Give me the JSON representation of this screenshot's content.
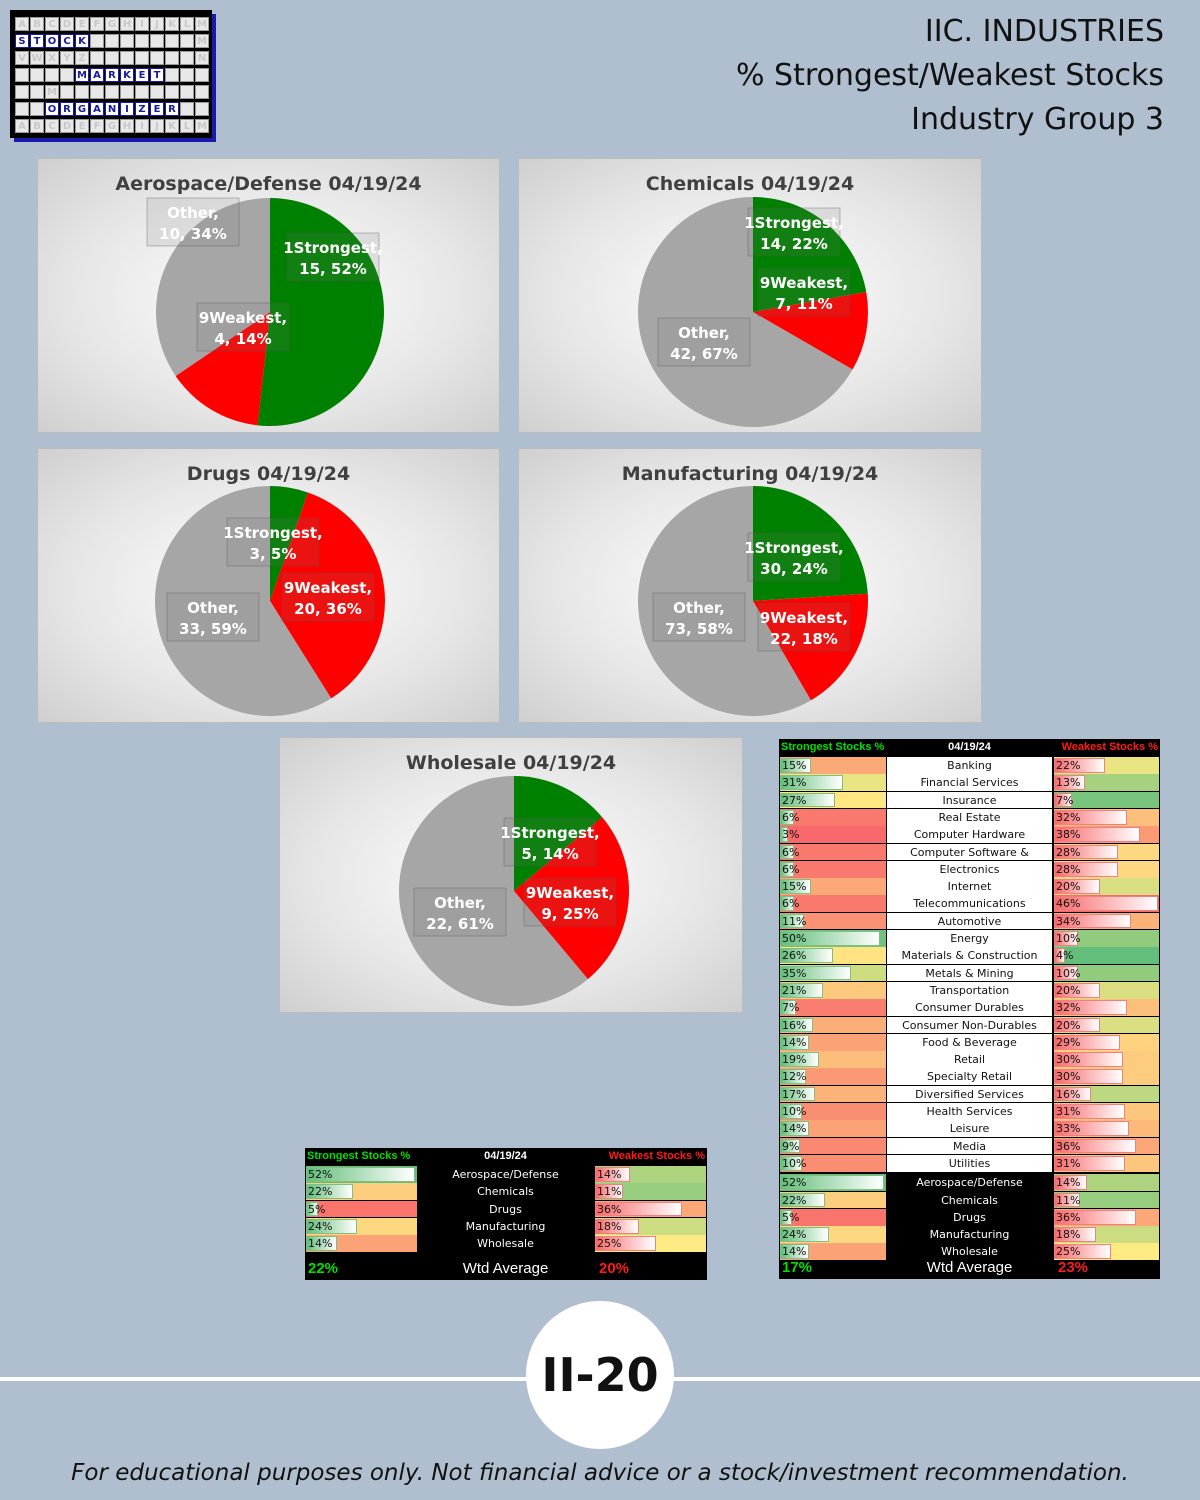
{
  "logo": {
    "rows": [
      [
        "A",
        "B",
        "C",
        "D",
        "E",
        "F",
        "G",
        "H",
        "I",
        "J",
        "K",
        "L",
        "M"
      ],
      [
        "S",
        "T",
        "O",
        "C",
        "K",
        "",
        "",
        "",
        "",
        "",
        "",
        "",
        "M"
      ],
      [
        "V",
        "W",
        "X",
        "Y",
        "Z",
        "",
        "",
        "",
        "",
        "",
        "",
        "",
        "N"
      ],
      [
        "",
        "",
        "",
        "",
        "M",
        "A",
        "R",
        "K",
        "E",
        "T",
        "",
        "",
        ""
      ],
      [
        "",
        "",
        "M",
        "",
        "",
        "",
        "",
        "",
        "",
        "",
        "",
        "",
        ""
      ],
      [
        "",
        "",
        "O",
        "R",
        "G",
        "A",
        "N",
        "I",
        "Z",
        "E",
        "R",
        "",
        ""
      ],
      [
        "A",
        "B",
        "C",
        "D",
        "E",
        "F",
        "G",
        "H",
        "I",
        "J",
        "K",
        "L",
        "M"
      ]
    ],
    "words": [
      "STOCK",
      "MARKET",
      "ORGANIZER"
    ]
  },
  "header": {
    "line1": "IIC. INDUSTRIES",
    "line2": "% Strongest/Weakest Stocks",
    "line3": "Industry Group 3"
  },
  "colors": {
    "strongest": "#008000",
    "weakest": "#ff0000",
    "other": "#a6a6a6",
    "strong_text": "#00e000",
    "weak_text": "#ff1a1a"
  },
  "chart_data": [
    {
      "type": "pie",
      "title": "Aerospace/Defense 04/19/24",
      "slices": [
        {
          "label": "1Strongest",
          "value": 15,
          "pct": "52%"
        },
        {
          "label": "9Weakest",
          "value": 4,
          "pct": "14%"
        },
        {
          "label": "Other",
          "value": 10,
          "pct": "34%"
        }
      ]
    },
    {
      "type": "pie",
      "title": "Chemicals 04/19/24",
      "slices": [
        {
          "label": "1Strongest",
          "value": 14,
          "pct": "22%"
        },
        {
          "label": "9Weakest",
          "value": 7,
          "pct": "11%"
        },
        {
          "label": "Other",
          "value": 42,
          "pct": "67%"
        }
      ]
    },
    {
      "type": "pie",
      "title": "Drugs 04/19/24",
      "slices": [
        {
          "label": "1Strongest",
          "value": 3,
          "pct": "5%"
        },
        {
          "label": "9Weakest",
          "value": 20,
          "pct": "36%"
        },
        {
          "label": "Other",
          "value": 33,
          "pct": "59%"
        }
      ]
    },
    {
      "type": "pie",
      "title": "Manufacturing 04/19/24",
      "slices": [
        {
          "label": "1Strongest",
          "value": 30,
          "pct": "24%"
        },
        {
          "label": "9Weakest",
          "value": 22,
          "pct": "18%"
        },
        {
          "label": "Other",
          "value": 73,
          "pct": "58%"
        }
      ]
    },
    {
      "type": "pie",
      "title": "Wholesale 04/19/24",
      "slices": [
        {
          "label": "1Strongest",
          "value": 5,
          "pct": "14%"
        },
        {
          "label": "9Weakest",
          "value": 9,
          "pct": "25%"
        },
        {
          "label": "Other",
          "value": 22,
          "pct": "61%"
        }
      ]
    },
    {
      "type": "table",
      "title": "04/19/24",
      "columns": [
        "Strongest Stocks %",
        "04/19/24",
        "Weakest Stocks %"
      ],
      "rows": [
        {
          "name": "Aerospace/Defense",
          "strong": 52,
          "weak": 14
        },
        {
          "name": "Chemicals",
          "strong": 22,
          "weak": 11
        },
        {
          "name": "Drugs",
          "strong": 5,
          "weak": 36
        },
        {
          "name": "Manufacturing",
          "strong": 24,
          "weak": 18
        },
        {
          "name": "Wholesale",
          "strong": 14,
          "weak": 25
        }
      ],
      "footer": {
        "strong": "22%",
        "label": "Wtd Average",
        "weak": "20%"
      }
    },
    {
      "type": "table",
      "title": "04/19/24",
      "columns": [
        "Strongest Stocks %",
        "04/19/24",
        "Weakest Stocks %"
      ],
      "rows": [
        {
          "name": "Banking",
          "strong": 15,
          "weak": 22
        },
        {
          "name": "Financial Services",
          "strong": 31,
          "weak": 13
        },
        {
          "name": "Insurance",
          "strong": 27,
          "weak": 7
        },
        {
          "name": "Real Estate",
          "strong": 6,
          "weak": 32
        },
        {
          "name": "Computer Hardware",
          "strong": 3,
          "weak": 38
        },
        {
          "name": "Computer Software & Services",
          "strong": 6,
          "weak": 28
        },
        {
          "name": "Electronics",
          "strong": 6,
          "weak": 28
        },
        {
          "name": "Internet",
          "strong": 15,
          "weak": 20
        },
        {
          "name": "Telecommunications",
          "strong": 6,
          "weak": 46
        },
        {
          "name": "Automotive",
          "strong": 11,
          "weak": 34
        },
        {
          "name": "Energy",
          "strong": 50,
          "weak": 10
        },
        {
          "name": "Materials & Construction",
          "strong": 26,
          "weak": 4
        },
        {
          "name": "Metals & Mining",
          "strong": 35,
          "weak": 10
        },
        {
          "name": "Transportation",
          "strong": 21,
          "weak": 20
        },
        {
          "name": "Consumer Durables",
          "strong": 7,
          "weak": 32
        },
        {
          "name": "Consumer Non-Durables",
          "strong": 16,
          "weak": 20
        },
        {
          "name": "Food & Beverage",
          "strong": 14,
          "weak": 29
        },
        {
          "name": "Retail",
          "strong": 19,
          "weak": 30
        },
        {
          "name": "Specialty Retail",
          "strong": 12,
          "weak": 30
        },
        {
          "name": "Diversified Services",
          "strong": 17,
          "weak": 16
        },
        {
          "name": "Health Services",
          "strong": 10,
          "weak": 31
        },
        {
          "name": "Leisure",
          "strong": 14,
          "weak": 33
        },
        {
          "name": "Media",
          "strong": 9,
          "weak": 36
        },
        {
          "name": "Utilities",
          "strong": 10,
          "weak": 31
        },
        {
          "name": "Aerospace/Defense",
          "strong": 52,
          "weak": 14
        },
        {
          "name": "Chemicals",
          "strong": 22,
          "weak": 11
        },
        {
          "name": "Drugs",
          "strong": 5,
          "weak": 36
        },
        {
          "name": "Manufacturing",
          "strong": 24,
          "weak": 18
        },
        {
          "name": "Wholesale",
          "strong": 14,
          "weak": 25
        }
      ],
      "footer": {
        "strong": "17%",
        "label": "Wtd Average",
        "weak": "23%"
      }
    }
  ],
  "page_number": "II-20",
  "disclaimer": "For educational purposes only. Not financial advice or a stock/investment recommendation."
}
